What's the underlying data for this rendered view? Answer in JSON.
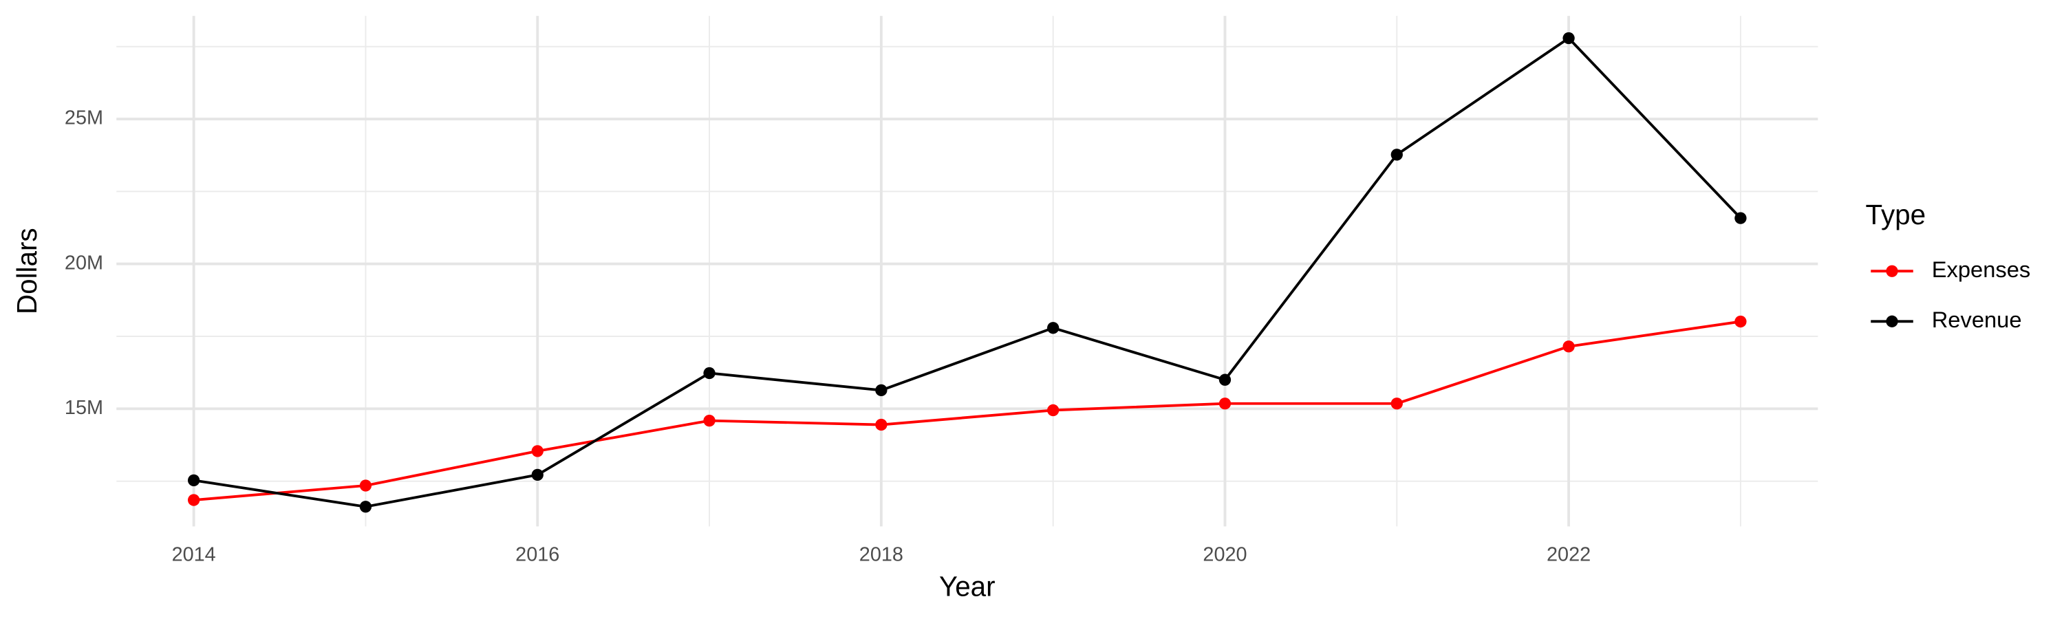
{
  "chart_data": {
    "type": "line",
    "x_label": "Year",
    "y_label": "Dollars",
    "legend_title": "Type",
    "x": [
      2014,
      2015,
      2016,
      2017,
      2018,
      2019,
      2020,
      2021,
      2022,
      2023
    ],
    "series": [
      {
        "name": "Expenses",
        "color": "#ff0000",
        "values": [
          11850000,
          12350000,
          13540000,
          14590000,
          14450000,
          14950000,
          15180000,
          15180000,
          17150000,
          18010000
        ]
      },
      {
        "name": "Revenue",
        "color": "#000000",
        "values": [
          12530000,
          11620000,
          12720000,
          16230000,
          15640000,
          17790000,
          16000000,
          23770000,
          27790000,
          21580000
        ]
      }
    ],
    "xlim": [
      2013.55,
      2023.45
    ],
    "xticks": [
      2014,
      2016,
      2018,
      2020,
      2022
    ],
    "ylim": [
      10940000,
      28560000
    ],
    "yticks": [
      {
        "value": 15000000,
        "label": "15M"
      },
      {
        "value": 20000000,
        "label": "20M"
      },
      {
        "value": 25000000,
        "label": "25M"
      }
    ],
    "grid": true,
    "legend": "right"
  }
}
